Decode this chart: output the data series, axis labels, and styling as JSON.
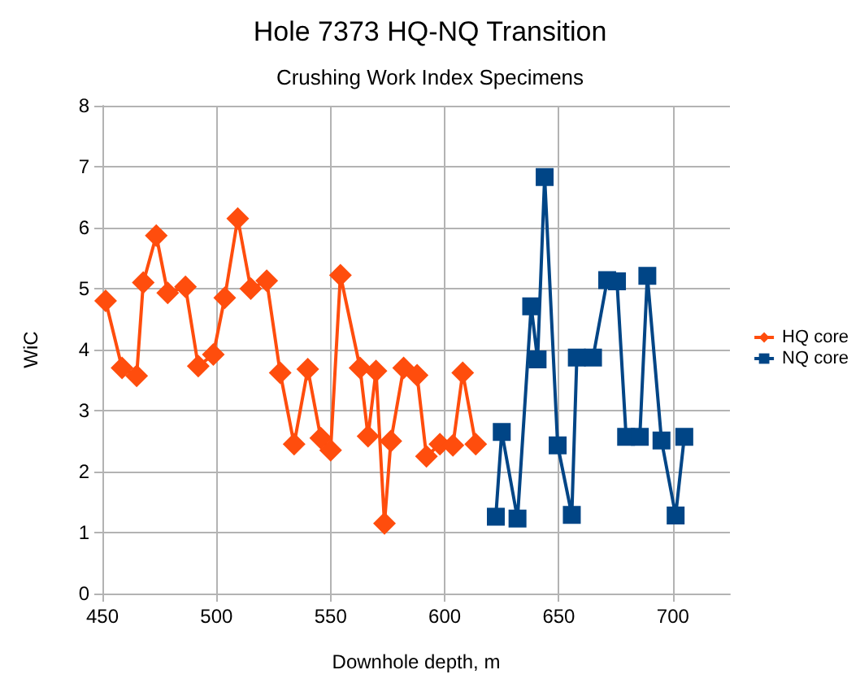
{
  "chart_data": {
    "type": "line",
    "title": "Hole 7373 HQ-NQ Transition",
    "subtitle": "Crushing Work Index Specimens",
    "xlabel": "Downhole depth, m",
    "ylabel": "WiC",
    "xlim": [
      450,
      725
    ],
    "xticks": [
      450,
      500,
      550,
      600,
      650,
      700
    ],
    "ylim": [
      0,
      8
    ],
    "yticks": [
      0,
      1,
      2,
      3,
      4,
      5,
      6,
      7,
      8
    ],
    "grid": true,
    "legend": "right",
    "series": [
      {
        "name": "HQ core",
        "color": "#ff4d0d",
        "marker": "diamond",
        "x": [
          451.4,
          458.6,
          465,
          467.9,
          473.6,
          478.6,
          486.4,
          492,
          498.6,
          503.6,
          509.3,
          515,
          522,
          527.9,
          534,
          540,
          545.7,
          550,
          554.3,
          562.9,
          566.4,
          569.9,
          573.6,
          576.4,
          582,
          587.9,
          592,
          597.9,
          603.6,
          607.9,
          613.6
        ],
        "values": [
          4.8,
          3.7,
          3.57,
          5.1,
          5.87,
          4.93,
          5.03,
          3.73,
          3.92,
          4.85,
          6.15,
          5.0,
          5.13,
          3.62,
          2.45,
          3.68,
          2.55,
          2.35,
          5.22,
          3.7,
          2.58,
          3.65,
          1.15,
          2.5,
          3.7,
          3.58,
          2.25,
          2.45,
          2.43,
          3.62,
          2.45
        ]
      },
      {
        "name": "NQ core",
        "color": "#004586",
        "marker": "square",
        "x": [
          622.4,
          625,
          631.9,
          637.9,
          640.7,
          643.8,
          649.5,
          655.7,
          657.9,
          665,
          671.2,
          675.5,
          679.5,
          685.5,
          688.8,
          695,
          701.2,
          705
        ],
        "values": [
          1.26,
          2.65,
          1.23,
          4.71,
          3.84,
          6.83,
          2.43,
          1.29,
          3.87,
          3.87,
          5.14,
          5.12,
          2.57,
          2.57,
          5.21,
          2.51,
          1.28,
          2.57
        ]
      }
    ]
  }
}
